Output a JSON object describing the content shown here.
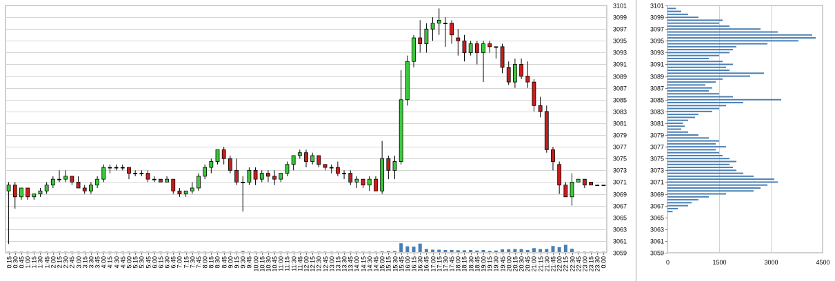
{
  "chart_data": [
    {
      "type": "candlestick",
      "title": "",
      "price_axis": {
        "min": 3059,
        "max": 3101,
        "ticks": [
          3059,
          3061,
          3063,
          3065,
          3067,
          3069,
          3071,
          3073,
          3075,
          3077,
          3079,
          3081,
          3083,
          3085,
          3087,
          3089,
          3091,
          3093,
          3095,
          3097,
          3099,
          3101
        ]
      },
      "volume_scale_max": 1000,
      "grid": true,
      "up_color": "#3cc83c",
      "down_color": "#c81e1e",
      "volume_color": "#4a7fb5",
      "time_labels": [
        "0:15",
        "0:30",
        "0:45",
        "1:00",
        "1:15",
        "1:30",
        "1:45",
        "2:00",
        "2:15",
        "2:30",
        "2:45",
        "3:00",
        "3:15",
        "3:30",
        "3:45",
        "4:00",
        "4:15",
        "4:30",
        "4:45",
        "5:00",
        "5:15",
        "5:30",
        "5:45",
        "6:00",
        "6:15",
        "6:30",
        "6:45",
        "7:00",
        "7:15",
        "7:30",
        "7:45",
        "8:00",
        "8:15",
        "8:30",
        "8:45",
        "9:00",
        "9:15",
        "9:30",
        "9:45",
        "10:00",
        "10:15",
        "10:30",
        "10:45",
        "11:00",
        "11:15",
        "11:30",
        "11:45",
        "12:00",
        "12:15",
        "12:30",
        "12:45",
        "13:00",
        "13:15",
        "13:30",
        "13:45",
        "14:00",
        "14:15",
        "14:30",
        "14:45",
        "15:00",
        "15:15",
        "15:30",
        "15:45",
        "16:00",
        "16:15",
        "16:30",
        "16:45",
        "17:00",
        "17:15",
        "17:30",
        "17:45",
        "18:00",
        "18:15",
        "18:30",
        "18:45",
        "19:00",
        "19:15",
        "19:30",
        "19:45",
        "20:00",
        "20:15",
        "20:30",
        "20:45",
        "21:00",
        "21:15",
        "21:30",
        "21:45",
        "22:00",
        "22:15",
        "22:30",
        "22:45",
        "23:00",
        "23:15",
        "23:30",
        "0:00"
      ],
      "candles": [
        [
          3069.5,
          3071.0,
          3060.5,
          3070.5,
          10
        ],
        [
          3070.5,
          3071.0,
          3066.5,
          3068.5,
          10
        ],
        [
          3068.5,
          3070.0,
          3068.0,
          3070.0,
          10
        ],
        [
          3070.0,
          3070.0,
          3068.0,
          3068.5,
          10
        ],
        [
          3068.5,
          3069.0,
          3068.0,
          3069.0,
          10
        ],
        [
          3069.0,
          3070.0,
          3068.5,
          3069.5,
          10
        ],
        [
          3069.5,
          3071.0,
          3069.0,
          3070.5,
          10
        ],
        [
          3070.5,
          3072.0,
          3070.0,
          3071.5,
          10
        ],
        [
          3071.5,
          3073.0,
          3071.0,
          3071.5,
          10
        ],
        [
          3071.5,
          3073.0,
          3071.0,
          3072.0,
          10
        ],
        [
          3072.0,
          3072.0,
          3070.5,
          3071.0,
          10
        ],
        [
          3071.0,
          3072.0,
          3070.0,
          3070.0,
          10
        ],
        [
          3070.0,
          3070.5,
          3069.0,
          3069.5,
          10
        ],
        [
          3069.5,
          3071.0,
          3069.0,
          3070.5,
          10
        ],
        [
          3070.5,
          3072.0,
          3070.0,
          3071.5,
          10
        ],
        [
          3071.5,
          3074.0,
          3071.0,
          3073.5,
          10
        ],
        [
          3073.5,
          3074.0,
          3072.5,
          3073.5,
          10
        ],
        [
          3073.5,
          3074.0,
          3073.0,
          3073.5,
          10
        ],
        [
          3073.5,
          3074.0,
          3073.0,
          3073.5,
          10
        ],
        [
          3073.5,
          3073.5,
          3071.5,
          3072.5,
          10
        ],
        [
          3072.5,
          3073.0,
          3072.0,
          3072.5,
          10
        ],
        [
          3072.5,
          3073.0,
          3072.0,
          3072.5,
          10
        ],
        [
          3072.5,
          3073.0,
          3071.0,
          3071.5,
          10
        ],
        [
          3071.5,
          3072.0,
          3071.0,
          3071.5,
          10
        ],
        [
          3071.5,
          3071.5,
          3071.0,
          3071.0,
          10
        ],
        [
          3071.0,
          3072.0,
          3071.0,
          3071.5,
          10
        ],
        [
          3071.5,
          3071.5,
          3069.0,
          3069.5,
          10
        ],
        [
          3069.5,
          3070.0,
          3068.5,
          3069.0,
          10
        ],
        [
          3069.0,
          3069.5,
          3068.5,
          3069.5,
          10
        ],
        [
          3069.5,
          3071.0,
          3069.0,
          3070.0,
          10
        ],
        [
          3070.0,
          3072.5,
          3069.5,
          3072.0,
          10
        ],
        [
          3072.0,
          3074.0,
          3071.5,
          3073.5,
          10
        ],
        [
          3073.5,
          3075.0,
          3072.5,
          3074.5,
          10
        ],
        [
          3074.5,
          3076.5,
          3074.0,
          3076.5,
          10
        ],
        [
          3076.5,
          3077.0,
          3074.0,
          3075.0,
          10
        ],
        [
          3075.0,
          3075.5,
          3072.5,
          3073.0,
          10
        ],
        [
          3073.0,
          3075.0,
          3070.5,
          3071.0,
          10
        ],
        [
          3071.0,
          3072.0,
          3066.0,
          3071.0,
          30
        ],
        [
          3071.0,
          3073.5,
          3070.5,
          3073.0,
          10
        ],
        [
          3073.0,
          3073.5,
          3070.5,
          3071.5,
          10
        ],
        [
          3071.5,
          3073.0,
          3071.0,
          3072.5,
          10
        ],
        [
          3072.5,
          3073.0,
          3071.0,
          3072.0,
          10
        ],
        [
          3072.0,
          3073.0,
          3070.5,
          3071.5,
          10
        ],
        [
          3071.5,
          3072.5,
          3071.0,
          3072.5,
          10
        ],
        [
          3072.5,
          3074.5,
          3072.0,
          3074.0,
          10
        ],
        [
          3074.0,
          3075.5,
          3073.0,
          3075.5,
          10
        ],
        [
          3075.5,
          3076.5,
          3075.0,
          3076.0,
          10
        ],
        [
          3076.0,
          3076.5,
          3073.5,
          3074.5,
          10
        ],
        [
          3074.5,
          3076.0,
          3074.0,
          3075.5,
          10
        ],
        [
          3075.5,
          3075.5,
          3073.5,
          3074.0,
          10
        ],
        [
          3074.0,
          3074.0,
          3073.0,
          3073.5,
          10
        ],
        [
          3073.5,
          3074.0,
          3072.5,
          3073.5,
          10
        ],
        [
          3073.5,
          3074.5,
          3072.0,
          3072.5,
          10
        ],
        [
          3072.5,
          3073.0,
          3071.5,
          3072.5,
          10
        ],
        [
          3072.5,
          3073.0,
          3070.5,
          3071.0,
          10
        ],
        [
          3071.0,
          3072.0,
          3070.0,
          3071.5,
          10
        ],
        [
          3071.5,
          3071.5,
          3070.0,
          3070.5,
          10
        ],
        [
          3070.5,
          3072.0,
          3069.5,
          3071.5,
          10
        ],
        [
          3071.5,
          3072.0,
          3069.5,
          3069.5,
          10
        ],
        [
          3069.5,
          3078.0,
          3069.0,
          3075.0,
          20
        ],
        [
          3075.0,
          3075.5,
          3071.5,
          3073.0,
          30
        ],
        [
          3073.0,
          3075.5,
          3071.5,
          3074.5,
          30
        ],
        [
          3074.5,
          3090.0,
          3074.0,
          3085.0,
          290
        ],
        [
          3085.0,
          3092.5,
          3084.0,
          3091.5,
          190
        ],
        [
          3091.5,
          3096.0,
          3090.5,
          3095.5,
          180
        ],
        [
          3095.5,
          3098.5,
          3093.0,
          3094.5,
          280
        ],
        [
          3094.5,
          3098.0,
          3093.0,
          3097.0,
          100
        ],
        [
          3097.0,
          3099.0,
          3095.0,
          3098.0,
          80
        ],
        [
          3098.0,
          3100.5,
          3096.0,
          3098.5,
          80
        ],
        [
          3098.0,
          3099.0,
          3094.0,
          3098.0,
          70
        ],
        [
          3098.0,
          3098.5,
          3094.5,
          3096.0,
          70
        ],
        [
          3095.5,
          3097.0,
          3092.5,
          3095.0,
          60
        ],
        [
          3095.0,
          3096.0,
          3091.5,
          3093.0,
          60
        ],
        [
          3093.0,
          3095.0,
          3092.5,
          3094.5,
          70
        ],
        [
          3094.5,
          3095.0,
          3091.0,
          3093.0,
          50
        ],
        [
          3093.0,
          3095.0,
          3088.0,
          3094.5,
          70
        ],
        [
          3094.5,
          3095.0,
          3093.0,
          3094.0,
          40
        ],
        [
          3094.0,
          3094.0,
          3092.0,
          3094.0,
          50
        ],
        [
          3094.0,
          3094.5,
          3089.5,
          3090.5,
          90
        ],
        [
          3090.5,
          3091.5,
          3087.5,
          3088.0,
          90
        ],
        [
          3088.0,
          3092.0,
          3087.0,
          3091.0,
          100
        ],
        [
          3091.0,
          3092.0,
          3088.5,
          3089.0,
          100
        ],
        [
          3089.0,
          3091.5,
          3087.0,
          3088.0,
          70
        ],
        [
          3088.0,
          3088.5,
          3083.0,
          3084.0,
          130
        ],
        [
          3084.0,
          3085.5,
          3082.0,
          3083.0,
          100
        ],
        [
          3083.0,
          3084.0,
          3076.0,
          3076.5,
          100
        ],
        [
          3076.5,
          3077.0,
          3073.0,
          3074.5,
          200
        ],
        [
          3074.0,
          3074.5,
          3069.0,
          3070.5,
          160
        ],
        [
          3070.5,
          3071.0,
          3068.5,
          3068.5,
          240
        ],
        [
          3068.5,
          3072.5,
          3067.0,
          3071.0,
          110
        ],
        [
          3071.0,
          3071.5,
          3071.0,
          3071.5,
          10
        ],
        [
          3071.5,
          3071.5,
          3070.0,
          3070.5,
          10
        ],
        [
          3071.0,
          3071.0,
          3070.5,
          3070.5,
          10
        ],
        [
          3070.5,
          3070.5,
          3070.5,
          3070.5,
          10
        ],
        [
          3070.5,
          3070.5,
          3070.5,
          3070.5,
          10
        ]
      ]
    },
    {
      "type": "volume_profile",
      "title": "",
      "x_ticks": [
        0,
        1500,
        3000,
        4500
      ],
      "xlim": [
        0,
        4500
      ],
      "price_axis": {
        "min": 3059,
        "max": 3101,
        "ticks": [
          3059,
          3061,
          3063,
          3065,
          3067,
          3069,
          3071,
          3073,
          3075,
          3077,
          3079,
          3081,
          3083,
          3085,
          3087,
          3089,
          3091,
          3093,
          3095,
          3097,
          3099,
          3101
        ]
      },
      "bar_color": "#4a7fb5",
      "grid": true,
      "levels": [
        [
          3066.0,
          150
        ],
        [
          3066.5,
          300
        ],
        [
          3067.0,
          600
        ],
        [
          3067.5,
          700
        ],
        [
          3068.0,
          900
        ],
        [
          3068.5,
          1200
        ],
        [
          3069.0,
          1700
        ],
        [
          3069.5,
          2500
        ],
        [
          3070.0,
          2700
        ],
        [
          3070.5,
          2900
        ],
        [
          3071.0,
          3200
        ],
        [
          3071.5,
          3100
        ],
        [
          3072.0,
          2500
        ],
        [
          3072.5,
          2200
        ],
        [
          3073.0,
          2000
        ],
        [
          3073.5,
          1900
        ],
        [
          3074.0,
          1800
        ],
        [
          3074.5,
          2000
        ],
        [
          3075.0,
          1800
        ],
        [
          3075.5,
          1600
        ],
        [
          3076.0,
          1500
        ],
        [
          3076.5,
          1400
        ],
        [
          3077.0,
          1700
        ],
        [
          3077.5,
          1400
        ],
        [
          3078.0,
          1500
        ],
        [
          3078.5,
          1200
        ],
        [
          3079.0,
          900
        ],
        [
          3079.5,
          600
        ],
        [
          3080.0,
          400
        ],
        [
          3080.5,
          500
        ],
        [
          3081.0,
          450
        ],
        [
          3081.5,
          600
        ],
        [
          3082.0,
          800
        ],
        [
          3082.5,
          900
        ],
        [
          3083.0,
          1300
        ],
        [
          3083.5,
          1500
        ],
        [
          3084.0,
          1700
        ],
        [
          3084.5,
          2200
        ],
        [
          3085.0,
          3300
        ],
        [
          3085.5,
          1900
        ],
        [
          3086.0,
          1500
        ],
        [
          3086.5,
          1200
        ],
        [
          3087.0,
          1300
        ],
        [
          3087.5,
          1100
        ],
        [
          3088.0,
          1400
        ],
        [
          3088.5,
          1600
        ],
        [
          3089.0,
          2400
        ],
        [
          3089.5,
          2800
        ],
        [
          3090.0,
          1800
        ],
        [
          3090.5,
          1700
        ],
        [
          3091.0,
          1900
        ],
        [
          3091.5,
          1600
        ],
        [
          3092.0,
          1200
        ],
        [
          3092.5,
          1500
        ],
        [
          3093.0,
          1800
        ],
        [
          3093.5,
          1900
        ],
        [
          3094.0,
          2000
        ],
        [
          3094.5,
          2900
        ],
        [
          3095.0,
          3800
        ],
        [
          3095.5,
          4300
        ],
        [
          3096.0,
          4200
        ],
        [
          3096.5,
          3200
        ],
        [
          3097.0,
          2700
        ],
        [
          3097.5,
          1800
        ],
        [
          3098.0,
          1500
        ],
        [
          3098.5,
          1600
        ],
        [
          3099.0,
          900
        ],
        [
          3099.5,
          600
        ],
        [
          3100.0,
          400
        ],
        [
          3100.5,
          250
        ]
      ]
    }
  ]
}
